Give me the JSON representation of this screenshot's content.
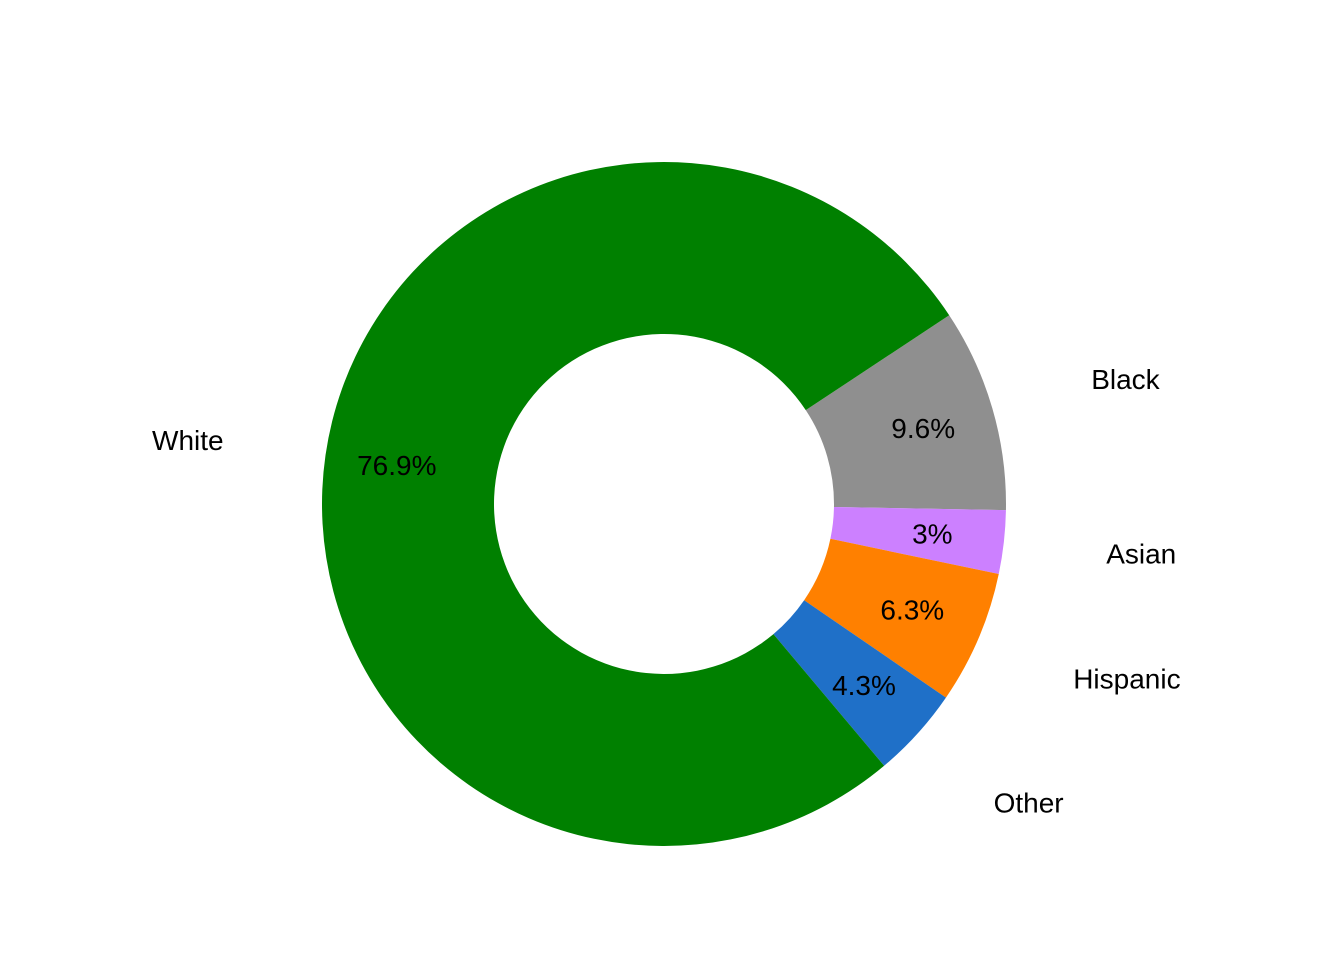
{
  "chart_data": {
    "type": "pie",
    "donut": true,
    "title": "",
    "slices": [
      {
        "label": "Black",
        "value": 9.6,
        "value_label": "9.6%",
        "color": "#8f8f8f"
      },
      {
        "label": "Asian",
        "value": 3.0,
        "value_label": "3%",
        "color": "#cc80ff"
      },
      {
        "label": "Hispanic",
        "value": 6.3,
        "value_label": "6.3%",
        "color": "#ff8000"
      },
      {
        "label": "Other",
        "value": 4.3,
        "value_label": "4.3%",
        "color": "#1f70c8"
      },
      {
        "label": "White",
        "value": 76.9,
        "value_label": "76.9%",
        "color": "#008000"
      }
    ],
    "legend": "none",
    "direction": "clockwise"
  }
}
